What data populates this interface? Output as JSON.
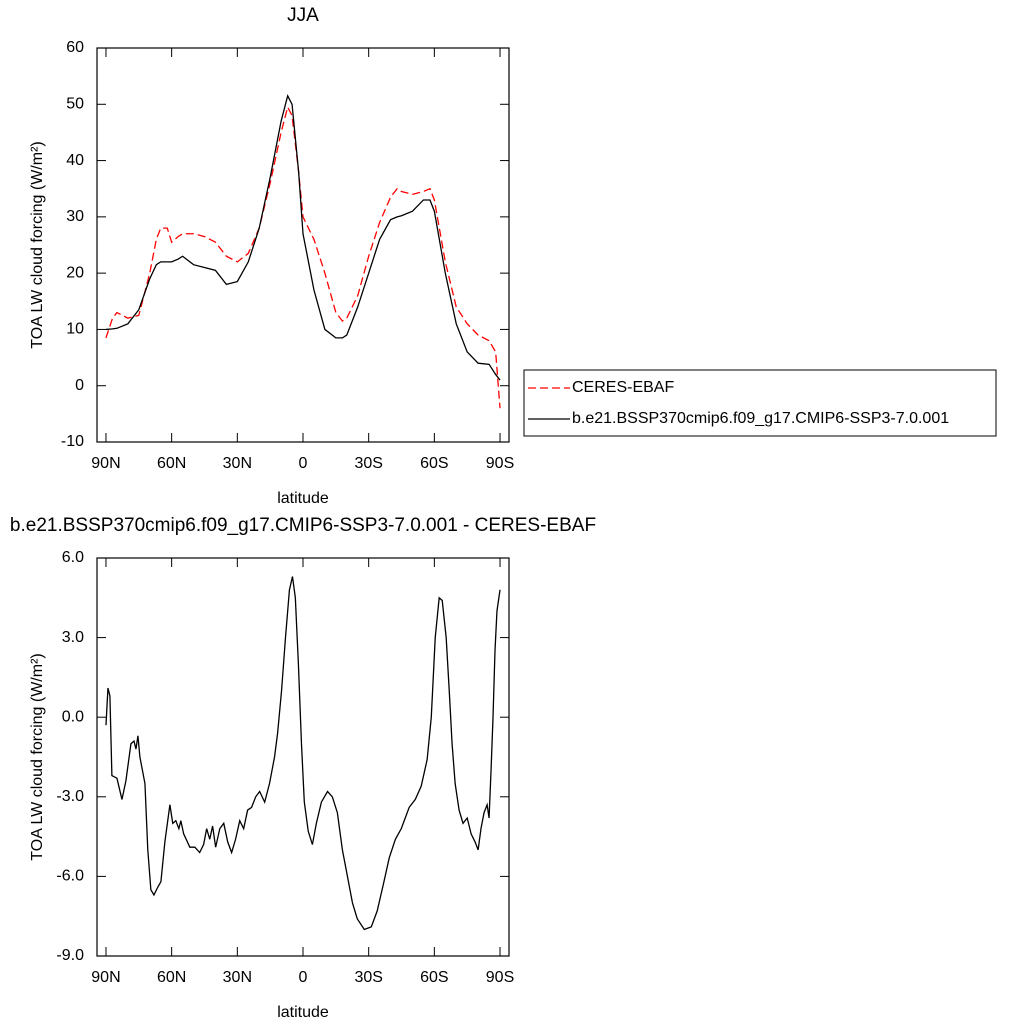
{
  "chart_data": [
    {
      "type": "line",
      "title": "JJA",
      "x_label": "latitude",
      "y_label": "TOA LW cloud forcing (W/m²)",
      "xlim": [
        94.1,
        -94.1
      ],
      "xticks": [
        {
          "value": 90,
          "label": "90N"
        },
        {
          "value": 60,
          "label": "60N"
        },
        {
          "value": 30,
          "label": "30N"
        },
        0,
        {
          "value": -30,
          "label": "30S"
        },
        {
          "value": -60,
          "label": "60S"
        },
        {
          "value": -90,
          "label": "90S"
        }
      ],
      "ylim": [
        -10,
        60
      ],
      "yticks": [
        -10,
        0,
        10,
        20,
        30,
        40,
        50,
        60
      ],
      "x": [
        90,
        87,
        85,
        80,
        75,
        70,
        67,
        65,
        62,
        60,
        57,
        55,
        50,
        45,
        40,
        35,
        30,
        25,
        20,
        15,
        10,
        7,
        5,
        2,
        0,
        -5,
        -10,
        -15,
        -18,
        -20,
        -25,
        -30,
        -35,
        -40,
        -43,
        -45,
        -50,
        -55,
        -58,
        -60,
        -65,
        -70,
        -75,
        -80,
        -85,
        -88,
        -90
      ],
      "series": [
        {
          "name": "CERES-EBAF",
          "color": "#ff0000",
          "dashed": true,
          "values": [
            8.5,
            12,
            13,
            12,
            12.5,
            20,
            26,
            28,
            28,
            25.5,
            26.5,
            27,
            27,
            26.5,
            25.5,
            23,
            22,
            23.5,
            28,
            36,
            45,
            49.5,
            48,
            38,
            30,
            26,
            20,
            13,
            11.5,
            12,
            16,
            23,
            29,
            33.5,
            35,
            34.5,
            34,
            34.5,
            35,
            33,
            22,
            14,
            11,
            9,
            8,
            6,
            -4
          ]
        },
        {
          "name": "b.e21.BSSP370cmip6.f09_g17.CMIP6-SSP3-7.0.001",
          "color": "#000000",
          "dashed": false,
          "values": [
            10,
            10.1,
            10.2,
            11,
            13.5,
            19,
            21.5,
            22,
            22,
            22,
            22.5,
            23,
            21.5,
            21,
            20.5,
            18,
            18.5,
            22,
            28,
            37,
            47,
            51.5,
            50,
            38,
            27,
            17,
            10,
            8.5,
            8.5,
            9,
            14,
            20,
            26,
            29.5,
            30,
            30.2,
            31,
            33,
            33,
            31,
            20,
            11,
            6,
            4,
            3.8,
            2,
            1
          ]
        }
      ]
    },
    {
      "type": "line",
      "title": "b.e21.BSSP370cmip6.f09_g17.CMIP6-SSP3-7.0.001 - CERES-EBAF",
      "x_label": "latitude",
      "y_label": "TOA LW cloud forcing (W/m²)",
      "xlim": [
        94.1,
        -94.1
      ],
      "xticks": [
        {
          "value": 90,
          "label": "90N"
        },
        {
          "value": 60,
          "label": "60N"
        },
        {
          "value": 30,
          "label": "30N"
        },
        0,
        {
          "value": -30,
          "label": "30S"
        },
        {
          "value": -60,
          "label": "60S"
        },
        {
          "value": -90,
          "label": "90S"
        }
      ],
      "ylim": [
        -9,
        6
      ],
      "yticks": [
        {
          "value": -9,
          "label": "-9.0"
        },
        {
          "value": -6,
          "label": "-6.0"
        },
        {
          "value": -3,
          "label": "-3.0"
        },
        {
          "value": 0,
          "label": "0.0"
        },
        {
          "value": 3,
          "label": "3.0"
        },
        {
          "value": 6,
          "label": "6.0"
        }
      ],
      "x": [
        90,
        89.1,
        88.2,
        87.3,
        85.0,
        82.7,
        80.9,
        78.6,
        77.2,
        76.3,
        75.4,
        74.5,
        72.2,
        70.9,
        69.5,
        68.1,
        66.3,
        64.9,
        63.1,
        60.8,
        59.5,
        58.1,
        56.7,
        55.8,
        54.5,
        51.7,
        49.4,
        47.2,
        45.4,
        44.0,
        42.6,
        41.3,
        39.9,
        38.0,
        36.2,
        34.4,
        32.6,
        30.8,
        28.9,
        27.1,
        25.3,
        23.5,
        21.6,
        19.8,
        17.5,
        15.3,
        13.0,
        11.6,
        9.8,
        8.0,
        6.2,
        4.8,
        3.5,
        2.1,
        0.7,
        -0.6,
        -2.4,
        -4.3,
        -6.1,
        -8.4,
        -11.2,
        -13.4,
        -15.7,
        -18.0,
        -20.3,
        -22.6,
        -24.8,
        -28.0,
        -31.2,
        -33.9,
        -36.7,
        -39.4,
        -42.2,
        -44.9,
        -46.7,
        -48.5,
        -51.3,
        -54.0,
        -56.7,
        -58.6,
        -60.4,
        -62.2,
        -63.6,
        -65.4,
        -66.8,
        -68.1,
        -69.5,
        -71.3,
        -73.1,
        -75.0,
        -76.8,
        -78.6,
        -80.0,
        -81.3,
        -82.7,
        -84.1,
        -85.0,
        -85.9,
        -86.8,
        -87.7,
        -88.6,
        -90
      ],
      "series": [
        {
          "color": "#000000",
          "dashed": false,
          "values": [
            -0.3,
            1.1,
            0.8,
            -2.2,
            -2.3,
            -3.1,
            -2.4,
            -1,
            -0.9,
            -1.2,
            -0.7,
            -1.5,
            -2.5,
            -5,
            -6.5,
            -6.7,
            -6.4,
            -6.2,
            -4.7,
            -3.3,
            -4,
            -3.9,
            -4.2,
            -3.9,
            -4.4,
            -4.9,
            -4.9,
            -5.1,
            -4.8,
            -4.2,
            -4.6,
            -4.1,
            -4.9,
            -4.2,
            -4,
            -4.7,
            -5.1,
            -4.6,
            -3.9,
            -4.2,
            -3.5,
            -3.4,
            -3,
            -2.8,
            -3.2,
            -2.5,
            -1.5,
            -0.6,
            1,
            3,
            4.8,
            5.3,
            4.5,
            2,
            -1,
            -3.2,
            -4.3,
            -4.8,
            -4,
            -3.2,
            -2.8,
            -3,
            -3.6,
            -5,
            -6,
            -7,
            -7.6,
            -8,
            -7.9,
            -7.3,
            -6.3,
            -5.3,
            -4.6,
            -4.2,
            -3.8,
            -3.4,
            -3.1,
            -2.6,
            -1.6,
            0,
            3,
            4.5,
            4.4,
            3,
            1,
            -1,
            -2.5,
            -3.5,
            -4,
            -3.8,
            -4.4,
            -4.7,
            -5,
            -4.2,
            -3.6,
            -3.3,
            -3.8,
            -2,
            0,
            2.5,
            4,
            4.8
          ]
        }
      ]
    }
  ]
}
